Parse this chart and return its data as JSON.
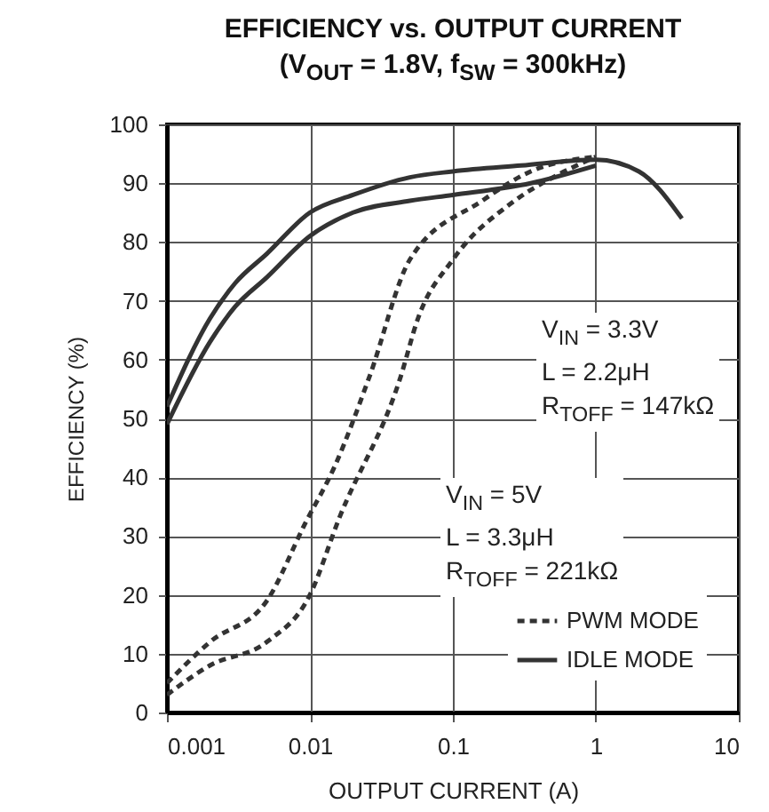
{
  "chart_data": {
    "type": "line",
    "title": "EFFICIENCY vs. OUTPUT CURRENT",
    "subtitle": "(V$_{OUT}$ = 1.8V, f$_{SW}$ = 300kHz)",
    "xlabel": "OUTPUT CURRENT (A)",
    "ylabel": "EFFICIENCY (%)",
    "log": "x",
    "xlim": [
      0.001,
      10
    ],
    "xticks": [
      0.001,
      0.01,
      0.1,
      1,
      10
    ],
    "ylim": [
      0,
      100
    ],
    "yticks": [
      0,
      10,
      20,
      30,
      40,
      50,
      60,
      70,
      80,
      90,
      100
    ],
    "grid": true,
    "legend": "bottom right",
    "annotations": [
      "V$_{IN}$ = 3.3V",
      "L = 2.2μH",
      "R$_{TOFF}$ = 147kΩ",
      "V$_{IN}$ = 5V",
      "L = 3.3μH",
      "R$_{TOFF}$ = 221kΩ"
    ],
    "series": [
      {
        "name": "PWM MODE",
        "color": "#333333",
        "line_style": "dashed",
        "x": [
          0.001,
          0.002,
          0.005,
          0.0092,
          0.015,
          0.026,
          0.05,
          0.16,
          0.35,
          1
        ],
        "values": [
          5,
          12,
          19,
          32,
          42,
          57,
          77,
          87,
          92,
          94.5
        ]
      },
      {
        "color": "#333333",
        "line_style": "dashed",
        "x": [
          0.001,
          0.002,
          0.005,
          0.01,
          0.016,
          0.043,
          0.057,
          0.1,
          0.27,
          0.55,
          1
        ],
        "values": [
          3,
          8,
          12,
          20,
          33,
          57,
          67,
          77,
          87,
          91.5,
          94.5
        ]
      },
      {
        "name": "IDLE MODE",
        "color": "#333333",
        "line_style": "solid",
        "x": [
          0.001,
          0.002,
          0.003,
          0.005,
          0.01,
          0.02,
          0.05,
          0.1,
          0.3,
          1,
          2,
          4
        ],
        "values": [
          52,
          67,
          73,
          78,
          85,
          88,
          91,
          92,
          93,
          94,
          92,
          84
        ]
      },
      {
        "color": "#333333",
        "line_style": "solid",
        "x": [
          0.001,
          0.002,
          0.003,
          0.005,
          0.01,
          0.02,
          0.05,
          0.1,
          0.35,
          1
        ],
        "values": [
          49,
          63,
          69,
          74,
          81,
          85,
          87,
          88,
          90,
          93
        ]
      }
    ]
  }
}
